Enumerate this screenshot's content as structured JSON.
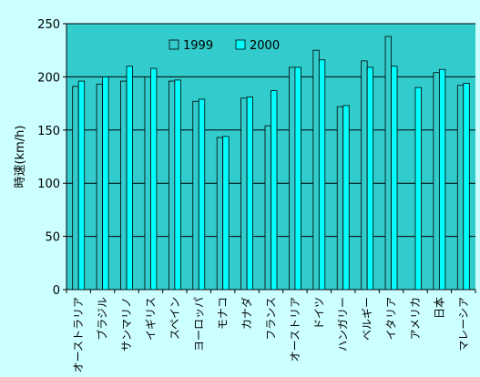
{
  "chart_data": {
    "type": "bar",
    "title": "",
    "xlabel": "",
    "ylabel": "時速(km/h)",
    "ylim": [
      0,
      250
    ],
    "yticks": [
      0,
      50,
      100,
      150,
      200,
      250
    ],
    "grid": true,
    "legend_position": "top-center",
    "categories": [
      "オーストラリア",
      "ブラジル",
      "サンマリノ",
      "イギリス",
      "スペイン",
      "ヨーロッパ",
      "モナコ",
      "カナダ",
      "フランス",
      "オーストリア",
      "ドイツ",
      "ハンガリー",
      "ベルギー",
      "イタリア",
      "アメリカ",
      "日本",
      "マレーシア"
    ],
    "series": [
      {
        "name": "1999",
        "color": "#33cccc",
        "values": [
          191,
          193,
          196,
          200,
          196,
          177,
          143,
          180,
          154,
          209,
          225,
          172,
          215,
          238,
          null,
          204,
          192
        ]
      },
      {
        "name": "2000",
        "color": "#00ffff",
        "values": [
          196,
          200,
          210,
          208,
          197,
          179,
          144,
          181,
          187,
          209,
          216,
          173,
          209,
          210,
          190,
          207,
          194
        ]
      }
    ]
  },
  "colors": {
    "background": "#ccffff",
    "plot_area": "#33cccc",
    "bar_outline": "#000000"
  }
}
